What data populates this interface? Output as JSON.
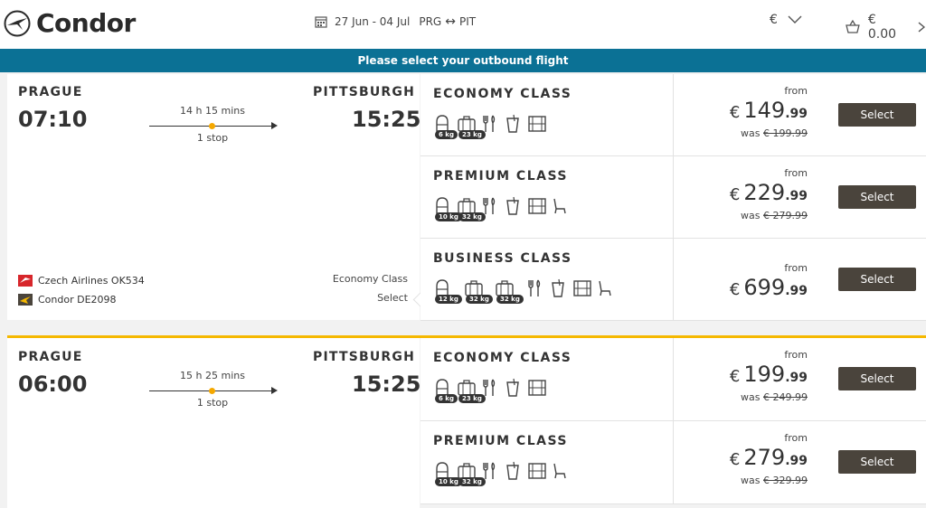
{
  "header": {
    "brand": "Condor",
    "dates": "27 Jun - 04 Jul",
    "origin": "PRG",
    "destination": "PIT",
    "currency": "€",
    "cart_total": "€ 0.00"
  },
  "banner": "Please select your outbound flight",
  "flights": [
    {
      "from_city": "PRAGUE",
      "dep_time": "07:10",
      "duration": "14 h 15 mins",
      "stops": "1 stop",
      "to_city": "PITTSBURGH",
      "arr_time": "15:25",
      "airlines": [
        "Czech Airlines OK534",
        "Condor DE2098"
      ],
      "fare_class": "Economy Class",
      "fare_select": "Select",
      "classes": [
        {
          "name": "ECONOMY CLASS",
          "badges": [
            "6 kg",
            "23 kg"
          ],
          "from": "from",
          "price_cur": "€",
          "price_int": "149",
          "price_cents": ".99",
          "was_label": "was",
          "was_price": "€ 199.99",
          "button": "Select"
        },
        {
          "name": "PREMIUM CLASS",
          "badges": [
            "10 kg",
            "32 kg"
          ],
          "from": "from",
          "price_cur": "€",
          "price_int": "229",
          "price_cents": ".99",
          "was_label": "was",
          "was_price": "€ 279.99",
          "button": "Select"
        },
        {
          "name": "BUSINESS CLASS",
          "badges": [
            "12 kg",
            "32 kg",
            "32 kg"
          ],
          "from": "from",
          "price_cur": "€",
          "price_int": "699",
          "price_cents": ".99",
          "button": "Select"
        }
      ]
    },
    {
      "from_city": "PRAGUE",
      "dep_time": "06:00",
      "duration": "15 h 25 mins",
      "stops": "1 stop",
      "to_city": "PITTSBURGH",
      "arr_time": "15:25",
      "classes": [
        {
          "name": "ECONOMY CLASS",
          "badges": [
            "6 kg",
            "23 kg"
          ],
          "from": "from",
          "price_cur": "€",
          "price_int": "199",
          "price_cents": ".99",
          "was_label": "was",
          "was_price": "€ 249.99",
          "button": "Select"
        },
        {
          "name": "PREMIUM CLASS",
          "badges": [
            "10 kg",
            "32 kg"
          ],
          "from": "from",
          "price_cur": "€",
          "price_int": "279",
          "price_cents": ".99",
          "was_label": "was",
          "was_price": "€ 329.99",
          "button": "Select"
        }
      ]
    }
  ],
  "colors": {
    "accent": "#0b7195",
    "gold": "#f5b800",
    "button": "#4a443c"
  }
}
